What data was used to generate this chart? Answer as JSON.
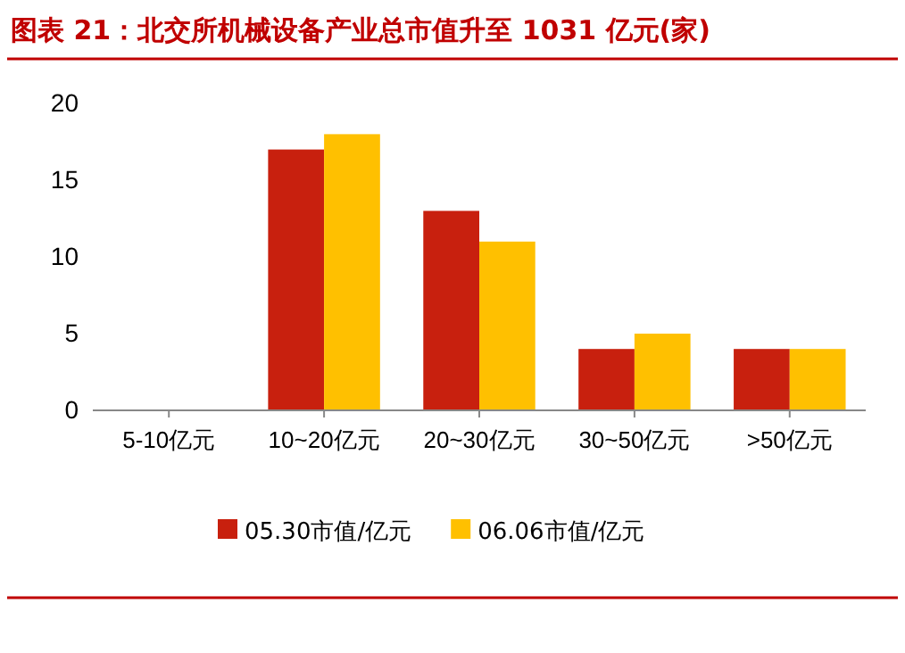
{
  "chart_data": {
    "type": "bar",
    "title": "图表 21：北交所机械设备产业总市值升至 1031 亿元(家)",
    "categories": [
      "5-10亿元",
      "10~20亿元",
      "20~30亿元",
      "30~50亿元",
      ">50亿元"
    ],
    "series": [
      {
        "name": "05.30市值/亿元",
        "color": "#c8200e",
        "values": [
          0,
          17,
          13,
          4,
          4
        ]
      },
      {
        "name": "06.06市值/亿元",
        "color": "#ffc000",
        "values": [
          0,
          18,
          11,
          5,
          4
        ]
      }
    ],
    "ylim": [
      0,
      20
    ],
    "yticks": [
      0,
      5,
      10,
      15,
      20
    ],
    "grid": false,
    "legend": "bottom"
  }
}
